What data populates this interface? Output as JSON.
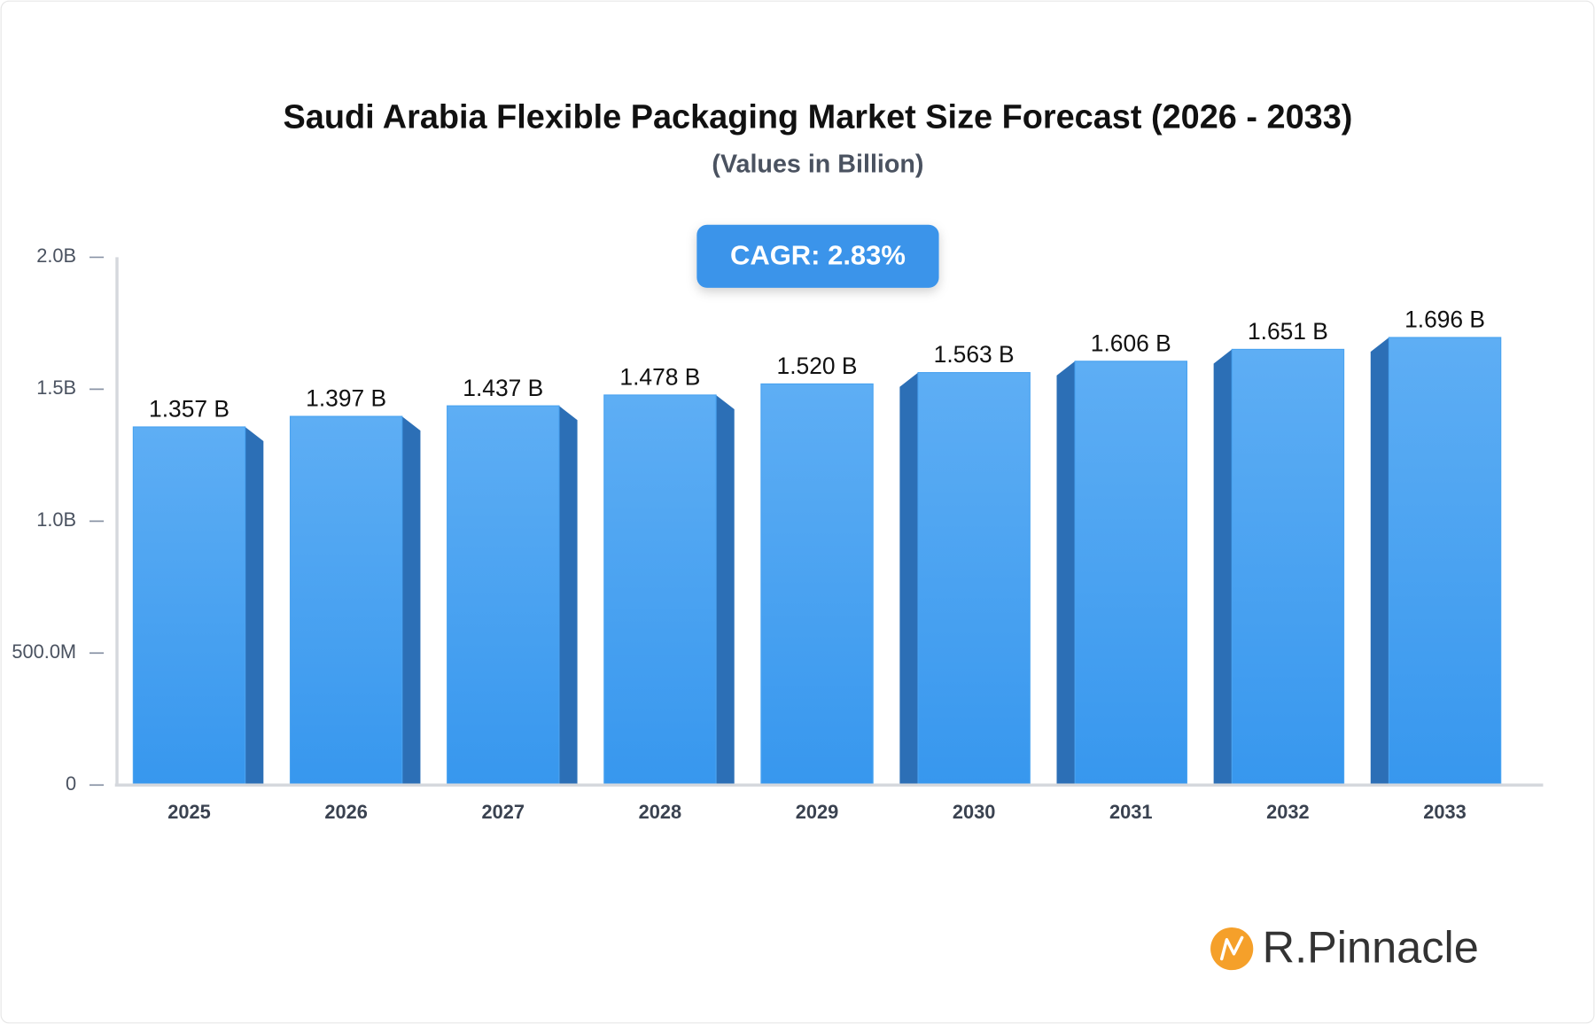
{
  "chart_data": {
    "type": "bar",
    "title": "Saudi Arabia Flexible Packaging Market Size Forecast (2026 - 2033)",
    "subtitle": "(Values in Billion)",
    "annotation": "CAGR: 2.83%",
    "logo": "R.Pinnacle",
    "categories": [
      "2025",
      "2026",
      "2027",
      "2028",
      "2029",
      "2030",
      "2031",
      "2032",
      "2033"
    ],
    "values": [
      1.357,
      1.397,
      1.437,
      1.478,
      1.52,
      1.563,
      1.606,
      1.651,
      1.696
    ],
    "value_labels": [
      "1.357 B",
      "1.397 B",
      "1.437 B",
      "1.478 B",
      "1.520 B",
      "1.563 B",
      "1.606 B",
      "1.651 B",
      "1.696 B"
    ],
    "color": "#4aa3f0",
    "ylim": [
      0,
      2
    ],
    "yticks": [
      0,
      {
        "value": 0.5,
        "label": "500.0M"
      },
      {
        "value": 1,
        "label": "1.0B"
      },
      {
        "value": 1.5,
        "label": "1.5B"
      },
      {
        "value": 2,
        "label": "2.0B"
      }
    ]
  }
}
